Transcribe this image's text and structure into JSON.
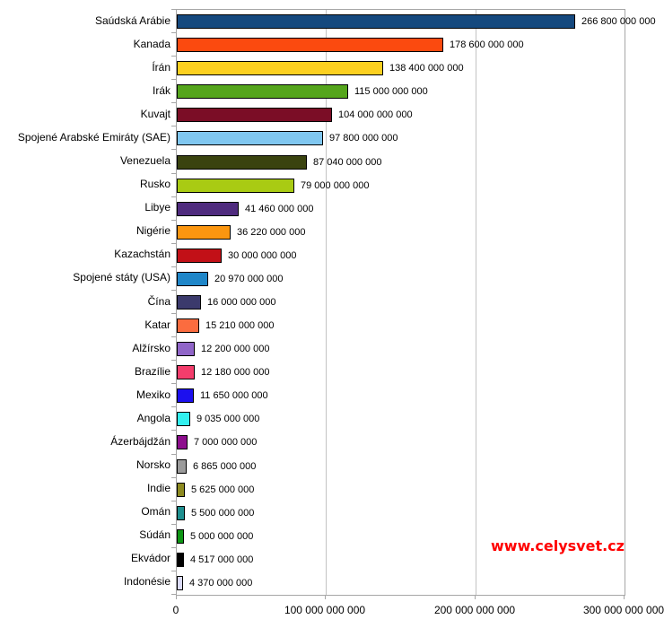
{
  "chart_data": {
    "type": "bar",
    "orientation": "horizontal",
    "title": "",
    "xlabel": "",
    "ylabel": "",
    "categories": [
      "Saúdská Arábie",
      "Kanada",
      "Írán",
      "Irák",
      "Kuvajt",
      "Spojené Arabské Emiráty (SAE)",
      "Venezuela",
      "Rusko",
      "Libye",
      "Nigérie",
      "Kazachstán",
      "Spojené státy (USA)",
      "Čína",
      "Katar",
      "Alžírsko",
      "Brazílie",
      "Mexiko",
      "Angola",
      "Ázerbájdžán",
      "Norsko",
      "Indie",
      "Omán",
      "Súdán",
      "Ekvádor",
      "Indonésie"
    ],
    "values": [
      266800000000,
      178600000000,
      138400000000,
      115000000000,
      104000000000,
      97800000000,
      87040000000,
      79000000000,
      41460000000,
      36220000000,
      30000000000,
      20970000000,
      16000000000,
      15210000000,
      12200000000,
      12180000000,
      11650000000,
      9035000000,
      7000000000,
      6865000000,
      5625000000,
      5500000000,
      5000000000,
      4517000000,
      4370000000
    ],
    "value_labels": [
      "266 800 000 000",
      "178 600 000 000",
      "138 400 000 000",
      "115 000 000 000",
      "104 000 000 000",
      "97 800 000 000",
      "87 040 000 000",
      "79 000 000 000",
      "41 460 000 000",
      "36 220 000 000",
      "30 000 000 000",
      "20 970 000 000",
      "16 000 000 000",
      "15 210 000 000",
      "12 200 000 000",
      "12 180 000 000",
      "11 650 000 000",
      "9 035 000 000",
      "7 000 000 000",
      "6 865 000 000",
      "5 625 000 000",
      "5 500 000 000",
      "5 000 000 000",
      "4 517 000 000",
      "4 370 000 000"
    ],
    "bar_colors": [
      "#15497E",
      "#FB4A0F",
      "#FCD020",
      "#55A51C",
      "#7B0D26",
      "#80C7F0",
      "#3A430F",
      "#A9CB13",
      "#4F2B7E",
      "#FB9610",
      "#C21017",
      "#1F86C8",
      "#3B3A6C",
      "#FB6C3F",
      "#9065C8",
      "#F43D6C",
      "#1C10EE",
      "#32F0EF",
      "#8D0E8D",
      "#9B9B9B",
      "#8D8A20",
      "#1E8F8F",
      "#0D9614",
      "#000000",
      "#DBDBF9"
    ],
    "bar_border_color": "#000000",
    "xlim": [
      0,
      300000000000
    ],
    "x_tick_values": [
      0,
      100000000000,
      200000000000,
      300000000000
    ],
    "x_tick_labels": [
      "0",
      "100 000 000 000",
      "200 000 000 000",
      "300 000 000 000"
    ],
    "grid": "vertical-major",
    "gridline_color": "#c3c3c3",
    "axis_color": "#a6a6a6",
    "legend": "none"
  },
  "watermark": {
    "text": "www.celysvet.cz",
    "color": "#ff0000"
  }
}
